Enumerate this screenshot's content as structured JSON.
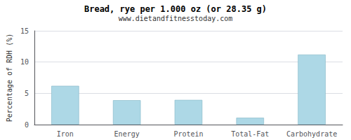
{
  "chart_data": {
    "type": "bar",
    "title": "Bread, rye per 1.000 oz (or 28.35 g)",
    "subtitle": "www.dietandfitnesstoday.com",
    "categories": [
      "Iron",
      "Energy",
      "Protein",
      "Total-Fat",
      "Carbohydrate"
    ],
    "values": [
      6.2,
      3.9,
      3.95,
      1.1,
      11.2
    ],
    "color": "#add8e6",
    "ylabel": "Percentage of RDH (%)",
    "ylim": [
      0,
      15
    ],
    "yticks": [
      0,
      5,
      10,
      15
    ],
    "grid": true
  }
}
